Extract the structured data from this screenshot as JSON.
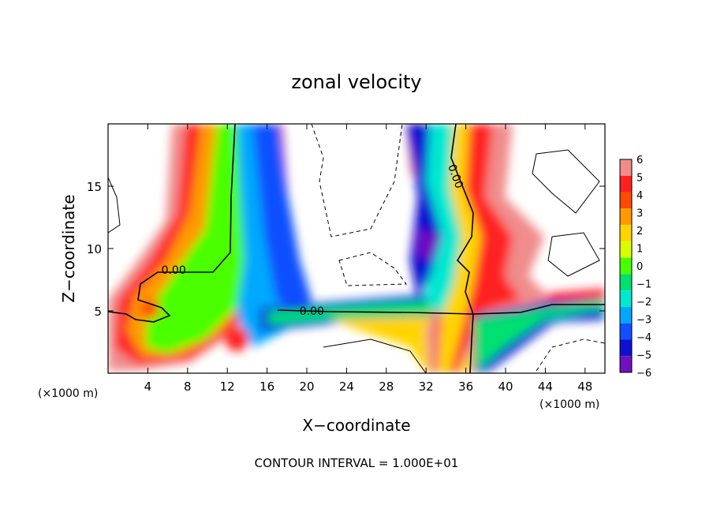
{
  "chart_data": {
    "type": "heatmap",
    "title": "zonal velocity",
    "xlabel": "X−coordinate",
    "ylabel": "Z−coordinate",
    "x_unit_left": "(×1000 m)",
    "x_unit_right": "(×1000 m)",
    "xlim": [
      0,
      50
    ],
    "ylim": [
      0,
      20
    ],
    "x_ticks": [
      4,
      8,
      12,
      16,
      20,
      24,
      28,
      32,
      36,
      40,
      44,
      48
    ],
    "y_ticks": [
      5,
      10,
      15
    ],
    "colorbar": {
      "levels": [
        6,
        5,
        4,
        3,
        2,
        1,
        0,
        -1,
        -2,
        -3,
        -4,
        -5,
        -6
      ],
      "colors": [
        "#f08c8c",
        "#ff2020",
        "#ff4a00",
        "#ff9a00",
        "#ffd400",
        "#d8ff00",
        "#48ff00",
        "#00e070",
        "#00e8d0",
        "#00a8ff",
        "#1050ff",
        "#1010d0",
        "#7010c0"
      ]
    },
    "contour_labels": [
      {
        "text": "0.00",
        "x": 6.6,
        "y": 8.3
      },
      {
        "text": "0.00",
        "x": 20.5,
        "y": 5.0
      },
      {
        "text": "0.00",
        "x": 35.0,
        "y": 15.8
      }
    ],
    "footer": "CONTOUR INTERVAL = 1.000E+01"
  }
}
